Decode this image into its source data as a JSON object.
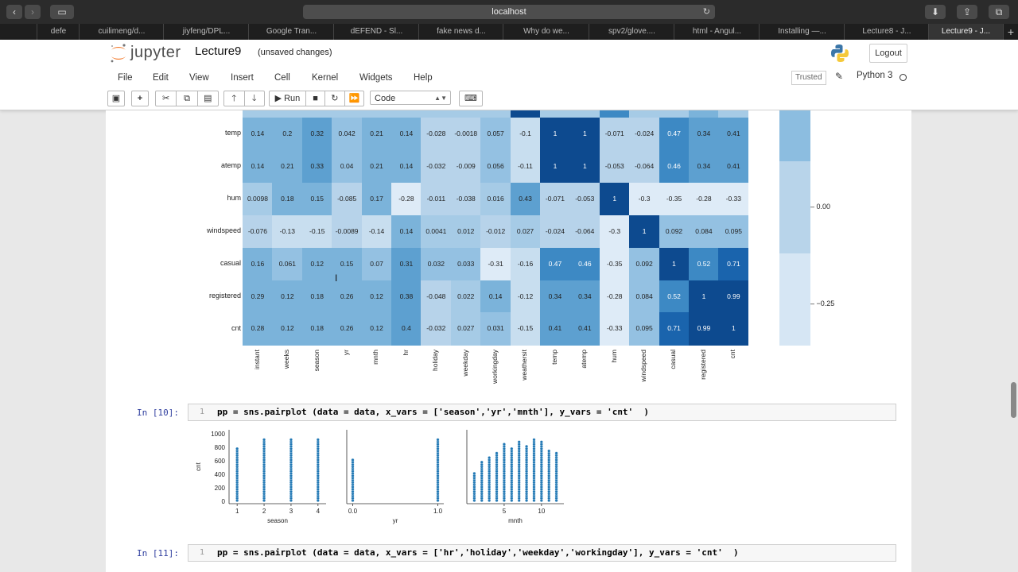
{
  "browser": {
    "url": "localhost",
    "tabs": [
      "defe",
      "cuilimeng/d...",
      "jiyfeng/DPL...",
      "Google Tran...",
      "dEFEND - Sl...",
      "fake news d...",
      "Why do we...",
      "spv2/glove....",
      "html - Angul...",
      "Installing —...",
      "Lecture8 - J...",
      "Lecture9 - J..."
    ]
  },
  "header": {
    "logo_text": "jupyter",
    "notebook_name": "Lecture9",
    "status": "(unsaved changes)",
    "logout_label": "Logout"
  },
  "menu": [
    "File",
    "Edit",
    "View",
    "Insert",
    "Cell",
    "Kernel",
    "Widgets",
    "Help"
  ],
  "kernel": {
    "trusted": "Trusted",
    "name": "Python 3"
  },
  "toolbar": {
    "run_label": "Run",
    "cell_type": "Code"
  },
  "heatmap": {
    "rows": [
      "temp",
      "atemp",
      "hum",
      "windspeed",
      "casual",
      "registered",
      "cnt"
    ],
    "cols": [
      "instant",
      "weeks",
      "season",
      "yr",
      "mnth",
      "hr",
      "holiday",
      "weekday",
      "workingday",
      "weathersit",
      "temp",
      "atemp",
      "hum",
      "windspeed",
      "casual",
      "registered",
      "cnt"
    ],
    "cells": [
      [
        "0.14",
        "0.2",
        "0.32",
        "0.042",
        "0.21",
        "0.14",
        "-0.028",
        "-0.0018",
        "0.057",
        "-0.1",
        "1",
        "1",
        "-0.071",
        "-0.024",
        "0.47",
        "0.34",
        "0.41"
      ],
      [
        "0.14",
        "0.21",
        "0.33",
        "0.04",
        "0.21",
        "0.14",
        "-0.032",
        "-0.009",
        "0.056",
        "-0.11",
        "1",
        "1",
        "-0.053",
        "-0.064",
        "0.46",
        "0.34",
        "0.41"
      ],
      [
        "0.0098",
        "0.18",
        "0.15",
        "-0.085",
        "0.17",
        "-0.28",
        "-0.011",
        "-0.038",
        "0.016",
        "0.43",
        "-0.071",
        "-0.053",
        "1",
        "-0.3",
        "-0.35",
        "-0.28",
        "-0.33"
      ],
      [
        "-0.076",
        "-0.13",
        "-0.15",
        "-0.0089",
        "-0.14",
        "0.14",
        "0.0041",
        "0.012",
        "-0.012",
        "0.027",
        "-0.024",
        "-0.064",
        "-0.3",
        "1",
        "0.092",
        "0.084",
        "0.095"
      ],
      [
        "0.16",
        "0.061",
        "0.12",
        "0.15",
        "0.07",
        "0.31",
        "0.032",
        "0.033",
        "-0.31",
        "-0.16",
        "0.47",
        "0.46",
        "-0.35",
        "0.092",
        "1",
        "0.52",
        "0.71"
      ],
      [
        "0.29",
        "0.12",
        "0.18",
        "0.26",
        "0.12",
        "0.38",
        "-0.048",
        "0.022",
        "0.14",
        "-0.12",
        "0.34",
        "0.34",
        "-0.28",
        "0.084",
        "0.52",
        "1",
        "0.99"
      ],
      [
        "0.28",
        "0.12",
        "0.18",
        "0.26",
        "0.12",
        "0.4",
        "-0.032",
        "0.027",
        "0.031",
        "-0.15",
        "0.41",
        "0.41",
        "-0.33",
        "0.095",
        "0.71",
        "0.99",
        "1"
      ]
    ],
    "colorbar_ticks": [
      "0.00",
      "−0.25"
    ]
  },
  "cells": [
    {
      "prompt": "In [10]:",
      "line": "1",
      "code": "pp = sns.pairplot (data = data, x_vars = ['season','yr','mnth'], y_vars = 'cnt'  )"
    },
    {
      "prompt": "In [11]:",
      "line": "1",
      "code": "pp = sns.pairplot (data = data, x_vars = ['hr','holiday','weekday','workingday'], y_vars = 'cnt'  )"
    }
  ],
  "pairplot": {
    "ylabel": "cnt",
    "yticks": [
      "1000",
      "800",
      "600",
      "400",
      "200",
      "0"
    ],
    "panels": [
      {
        "xlabel": "season",
        "xticks": [
          "1",
          "2",
          "3",
          "4"
        ]
      },
      {
        "xlabel": "yr",
        "xticks": [
          "0.0",
          "1.0"
        ]
      },
      {
        "xlabel": "mnth",
        "xticks": [
          "5",
          "10"
        ]
      }
    ]
  },
  "colors": {
    "accent": "#303f9f",
    "heat_dark": "#08306b",
    "heat_light": "#deebf7"
  }
}
